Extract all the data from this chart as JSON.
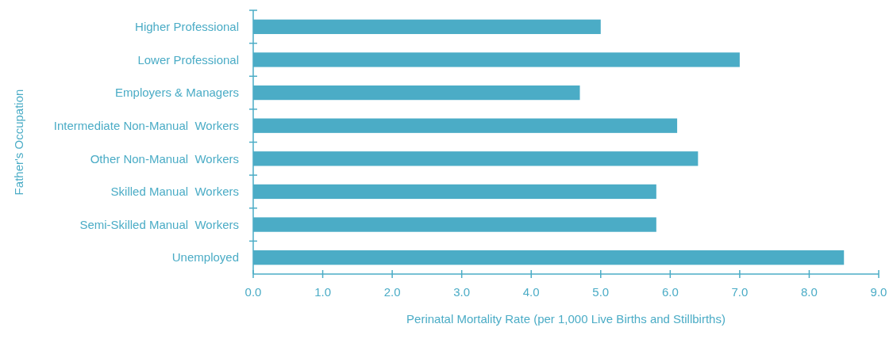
{
  "chart_data": {
    "type": "bar",
    "orientation": "horizontal",
    "xlabel": "Perinatal Mortality Rate (per 1,000 Live Births and Stillbirths)",
    "ylabel": "Father's Occupation",
    "categories": [
      "Higher Professional",
      "Lower Professional",
      "Employers & Managers",
      "Intermediate Non-Manual  Workers",
      "Other Non-Manual  Workers",
      "Skilled Manual  Workers",
      "Semi-Skilled Manual  Workers",
      "Unemployed"
    ],
    "values": [
      5.0,
      7.0,
      4.7,
      6.1,
      6.4,
      5.8,
      5.8,
      8.5
    ],
    "color": "#4bacc6",
    "xlim": [
      0,
      9
    ],
    "xticks": [
      {
        "value": 0,
        "label": "0.0"
      },
      {
        "value": 1,
        "label": "1.0"
      },
      {
        "value": 2,
        "label": "2.0"
      },
      {
        "value": 3,
        "label": "3.0"
      },
      {
        "value": 4,
        "label": "4.0"
      },
      {
        "value": 5,
        "label": "5.0"
      },
      {
        "value": 6,
        "label": "6.0"
      },
      {
        "value": 7,
        "label": "7.0"
      },
      {
        "value": 8,
        "label": "8.0"
      },
      {
        "value": 9,
        "label": "9.0"
      }
    ],
    "grid": false
  }
}
